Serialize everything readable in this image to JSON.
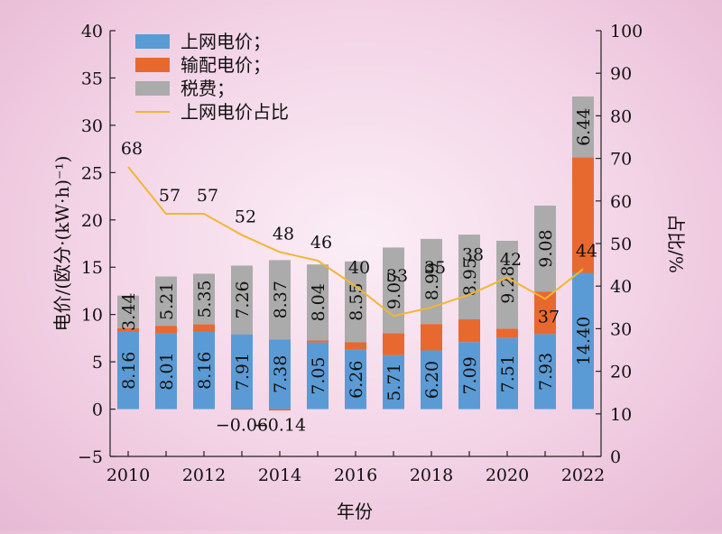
{
  "chart_data": {
    "type": "bar",
    "x": [
      2010,
      2011,
      2012,
      2013,
      2014,
      2015,
      2016,
      2017,
      2018,
      2019,
      2020,
      2021,
      2022
    ],
    "series": [
      {
        "name": "上网电价；",
        "kind": "bar",
        "color": "#5b9bd5",
        "values": [
          8.16,
          8.01,
          8.16,
          7.91,
          7.38,
          7.05,
          6.26,
          5.71,
          6.2,
          7.09,
          7.51,
          7.93,
          14.4
        ],
        "labels": [
          "8.16",
          "8.01",
          "8.16",
          "7.91",
          "7.38",
          "7.05",
          "6.26",
          "5.71",
          "6.20",
          "7.09",
          "7.51",
          "7.93",
          "14.40"
        ]
      },
      {
        "name": "输配电价；",
        "kind": "bar",
        "color": "#e8692f",
        "values": [
          0.4,
          0.8,
          0.8,
          -0.06,
          -0.14,
          0.2,
          0.8,
          2.3,
          2.8,
          2.4,
          1.0,
          4.5,
          12.2
        ],
        "labels": [
          "",
          "",
          "",
          "−0.06",
          "−0.14",
          "",
          "",
          "",
          "",
          "",
          "",
          "",
          ""
        ]
      },
      {
        "name": "税费；",
        "kind": "bar",
        "color": "#ababab",
        "values": [
          3.44,
          5.21,
          5.35,
          7.26,
          8.37,
          8.04,
          8.55,
          9.07,
          8.99,
          8.95,
          9.28,
          9.08,
          6.44
        ],
        "labels": [
          "3.44",
          "5.21",
          "5.35",
          "7.26",
          "8.37",
          "8.04",
          "8.55",
          "9.07",
          "8.99",
          "8.95",
          "9.28",
          "9.08",
          "6.44"
        ]
      },
      {
        "name": "上网电价占比",
        "kind": "line",
        "axis": "right",
        "color": "#f2b632",
        "values": [
          68,
          57,
          57,
          52,
          48,
          46,
          40,
          33,
          35,
          38,
          42,
          37,
          44
        ],
        "labels": [
          "68",
          "57",
          "57",
          "52",
          "48",
          "46",
          "40",
          "33",
          "35",
          "38",
          "42",
          "37",
          "44"
        ]
      }
    ],
    "xlabel": "年份",
    "ylabel": "电价/(欧分·(kW·h)⁻¹)",
    "y2label": "占比/%",
    "ylim": [
      -5,
      40
    ],
    "y2lim": [
      0,
      100
    ],
    "yticks": [
      "−5",
      "0",
      "5",
      "10",
      "15",
      "20",
      "25",
      "30",
      "35",
      "40"
    ],
    "y2ticks": [
      "0",
      "10",
      "20",
      "30",
      "40",
      "50",
      "60",
      "70",
      "80",
      "90",
      "100"
    ],
    "xticks": [
      "2010",
      "2012",
      "2014",
      "2016",
      "2018",
      "2020",
      "2022"
    ],
    "grid": false,
    "legend_position": "top-left"
  }
}
